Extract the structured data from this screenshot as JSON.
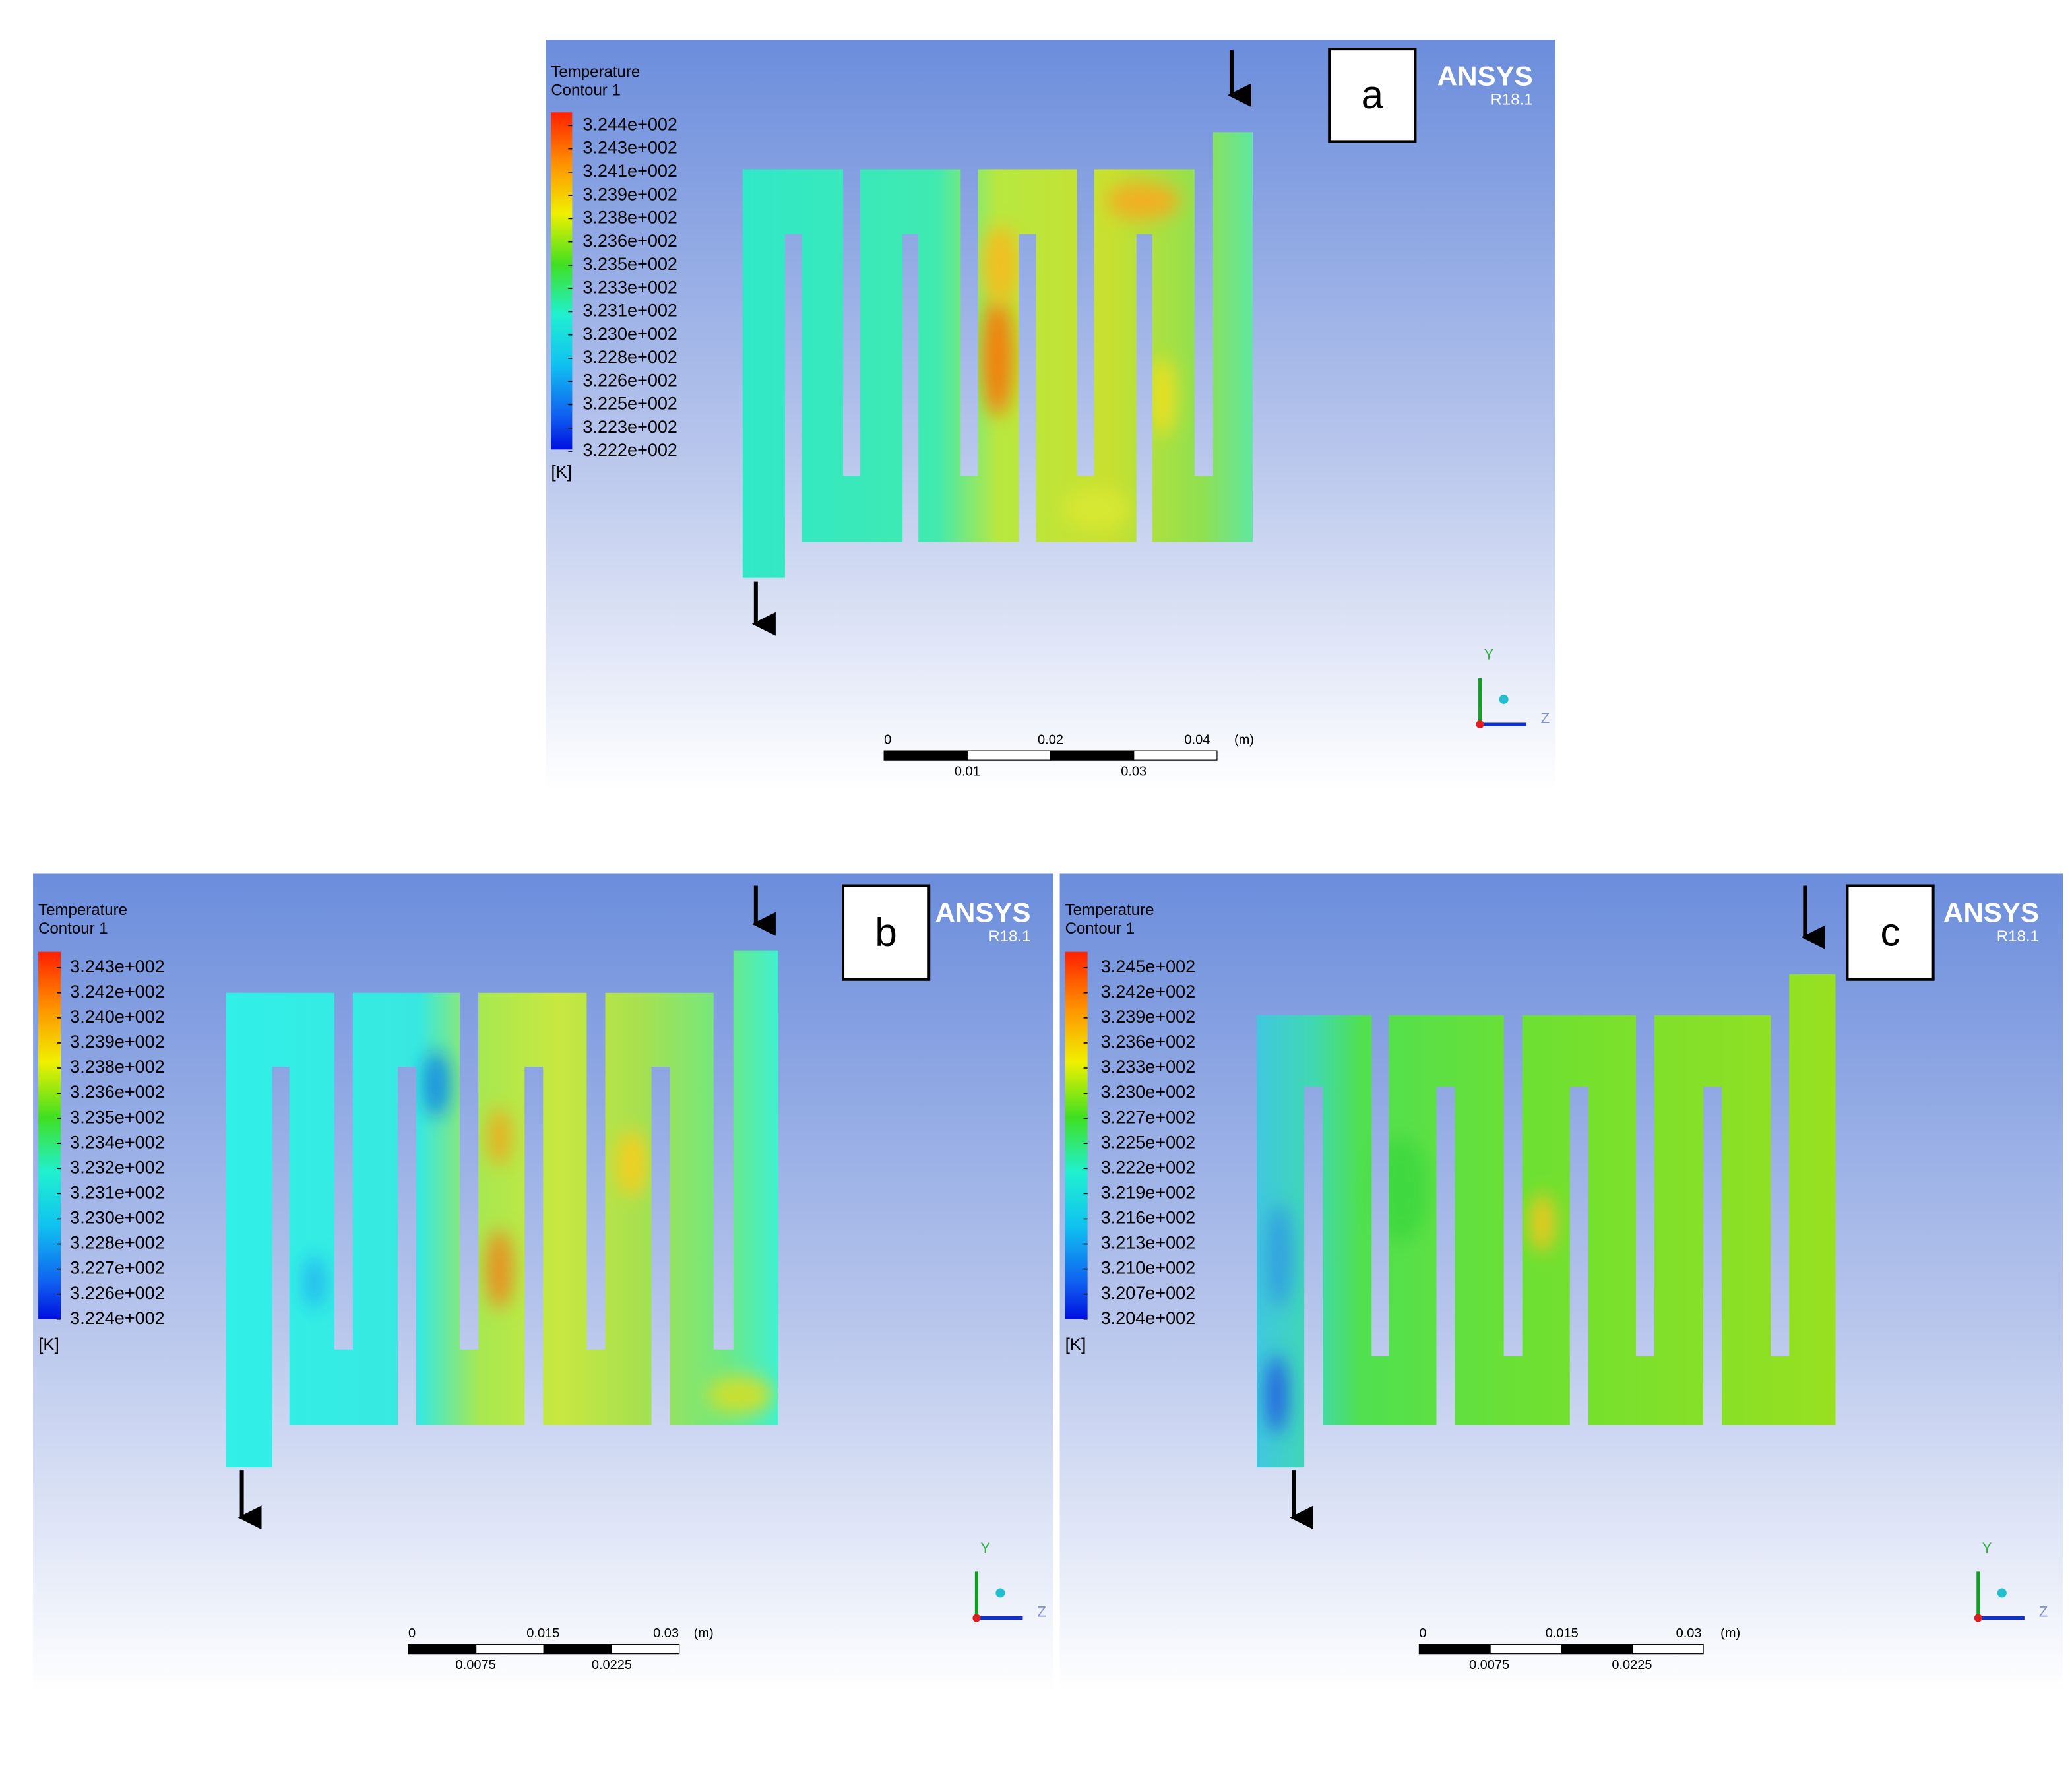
{
  "panels": [
    {
      "label": "a",
      "legend": {
        "title": "Temperature",
        "subtitle": "Contour 1",
        "ticks": [
          "3.244e+002",
          "3.243e+002",
          "3.241e+002",
          "3.239e+002",
          "3.238e+002",
          "3.236e+002",
          "3.235e+002",
          "3.233e+002",
          "3.231e+002",
          "3.230e+002",
          "3.228e+002",
          "3.226e+002",
          "3.225e+002",
          "3.223e+002",
          "3.222e+002"
        ],
        "unit": "[K]"
      },
      "logo": {
        "name": "ANSYS",
        "version": "R18.1"
      },
      "scale_bar": {
        "top": [
          "0",
          "0.02",
          "0.04"
        ],
        "unit": "(m)",
        "bottom": [
          "0.01",
          "0.03"
        ]
      },
      "axes": {
        "y": "Y",
        "z": "Z"
      }
    },
    {
      "label": "b",
      "legend": {
        "title": "Temperature",
        "subtitle": "Contour 1",
        "ticks": [
          "3.243e+002",
          "3.242e+002",
          "3.240e+002",
          "3.239e+002",
          "3.238e+002",
          "3.236e+002",
          "3.235e+002",
          "3.234e+002",
          "3.232e+002",
          "3.231e+002",
          "3.230e+002",
          "3.228e+002",
          "3.227e+002",
          "3.226e+002",
          "3.224e+002"
        ],
        "unit": "[K]"
      },
      "logo": {
        "name": "ANSYS",
        "version": "R18.1"
      },
      "scale_bar": {
        "top": [
          "0",
          "0.015",
          "0.03"
        ],
        "unit": "(m)",
        "bottom": [
          "0.0075",
          "0.0225"
        ]
      },
      "axes": {
        "y": "Y",
        "z": "Z"
      }
    },
    {
      "label": "c",
      "legend": {
        "title": "Temperature",
        "subtitle": "Contour 1",
        "ticks": [
          "3.245e+002",
          "3.242e+002",
          "3.239e+002",
          "3.236e+002",
          "3.233e+002",
          "3.230e+002",
          "3.227e+002",
          "3.225e+002",
          "3.222e+002",
          "3.219e+002",
          "3.216e+002",
          "3.213e+002",
          "3.210e+002",
          "3.207e+002",
          "3.204e+002"
        ],
        "unit": "[K]"
      },
      "logo": {
        "name": "ANSYS",
        "version": "R18.1"
      },
      "scale_bar": {
        "top": [
          "0",
          "0.015",
          "0.03"
        ],
        "unit": "(m)",
        "bottom": [
          "0.0075",
          "0.0225"
        ]
      },
      "axes": {
        "y": "Y",
        "z": "Z"
      }
    }
  ]
}
